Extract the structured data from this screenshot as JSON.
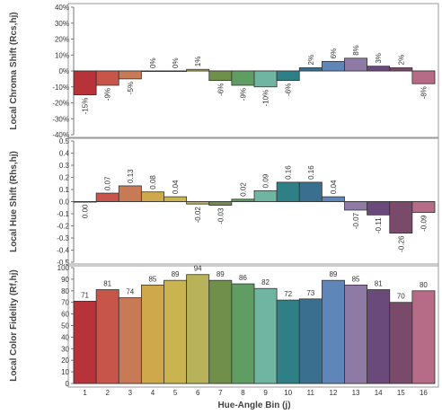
{
  "bar_colors": [
    "#b8323a",
    "#c8554a",
    "#c77a55",
    "#cfa84c",
    "#c9b450",
    "#b8b25a",
    "#6f8f4a",
    "#5f9d63",
    "#6fb5a2",
    "#2f7f86",
    "#3a6f8f",
    "#5f86b8",
    "#8f7aa6",
    "#6a4a7a",
    "#7a4a6a",
    "#b66b86"
  ],
  "x_label": "Hue-Angle Bin (j)",
  "chart_data": [
    {
      "type": "bar",
      "ylabel": "Local Chroma Shift (Rcs,hj)",
      "categories": [
        "1",
        "2",
        "3",
        "4",
        "5",
        "6",
        "7",
        "8",
        "9",
        "10",
        "11",
        "12",
        "13",
        "14",
        "15",
        "16"
      ],
      "values": [
        -0.15,
        -0.09,
        -0.05,
        0.0,
        0.0,
        0.01,
        -0.06,
        -0.09,
        -0.1,
        -0.06,
        0.02,
        0.06,
        0.08,
        0.03,
        0.02,
        -0.08
      ],
      "value_labels": [
        "-15%",
        "-9%",
        "-5%",
        "0%",
        "0%",
        "1%",
        "-6%",
        "-9%",
        "-10%",
        "-6%",
        "2%",
        "6%",
        "8%",
        "3%",
        "2%",
        "-8%"
      ],
      "ylim": [
        -0.4,
        0.4
      ],
      "yticks": [
        -0.4,
        -0.3,
        -0.2,
        -0.1,
        0,
        0.1,
        0.2,
        0.3,
        0.4
      ],
      "ytick_labels": [
        "-40%",
        "-30%",
        "-20%",
        "-10%",
        "0%",
        "10%",
        "20%",
        "30%",
        "40%"
      ],
      "grid": false
    },
    {
      "type": "bar",
      "ylabel": "Local Hue Shift (Rhs,hj)",
      "categories": [
        "1",
        "2",
        "3",
        "4",
        "5",
        "6",
        "7",
        "8",
        "9",
        "10",
        "11",
        "12",
        "13",
        "14",
        "15",
        "16"
      ],
      "values": [
        0.0,
        0.07,
        0.13,
        0.08,
        0.04,
        -0.02,
        -0.03,
        0.02,
        0.09,
        0.16,
        0.16,
        0.04,
        -0.07,
        -0.11,
        -0.26,
        -0.09
      ],
      "value_labels": [
        "0.00",
        "0.07",
        "0.13",
        "0.08",
        "0.04",
        "-0.02",
        "-0.03",
        "0.02",
        "0.09",
        "0.16",
        "0.16",
        "0.04",
        "-0.07",
        "-0.11",
        "-0.26",
        "-0.09"
      ],
      "ylim": [
        -0.5,
        0.5
      ],
      "yticks": [
        -0.5,
        -0.4,
        -0.3,
        -0.2,
        -0.1,
        0,
        0.1,
        0.2,
        0.3,
        0.4,
        0.5
      ],
      "ytick_labels": [
        "-0.5",
        "-0.4",
        "-0.3",
        "-0.2",
        "-0.1",
        "0.0",
        "0.1",
        "0.2",
        "0.3",
        "0.4",
        "0.5"
      ],
      "grid": false
    },
    {
      "type": "bar",
      "ylabel": "Local Color Fidelity (Rf,hj)",
      "categories": [
        "1",
        "2",
        "3",
        "4",
        "5",
        "6",
        "7",
        "8",
        "9",
        "10",
        "11",
        "12",
        "13",
        "14",
        "15",
        "16"
      ],
      "values": [
        71,
        81,
        74,
        85,
        89,
        94,
        89,
        86,
        82,
        72,
        73,
        89,
        85,
        81,
        70,
        80
      ],
      "value_labels": [
        "71",
        "81",
        "74",
        "85",
        "89",
        "94",
        "89",
        "86",
        "82",
        "72",
        "73",
        "89",
        "85",
        "81",
        "70",
        "80"
      ],
      "ylim": [
        0,
        100
      ],
      "yticks": [
        0,
        10,
        20,
        30,
        40,
        50,
        60,
        70,
        80,
        90,
        100
      ],
      "ytick_labels": [
        "0",
        "10",
        "20",
        "30",
        "40",
        "50",
        "60",
        "70",
        "80",
        "90",
        "100"
      ],
      "grid": false
    }
  ]
}
